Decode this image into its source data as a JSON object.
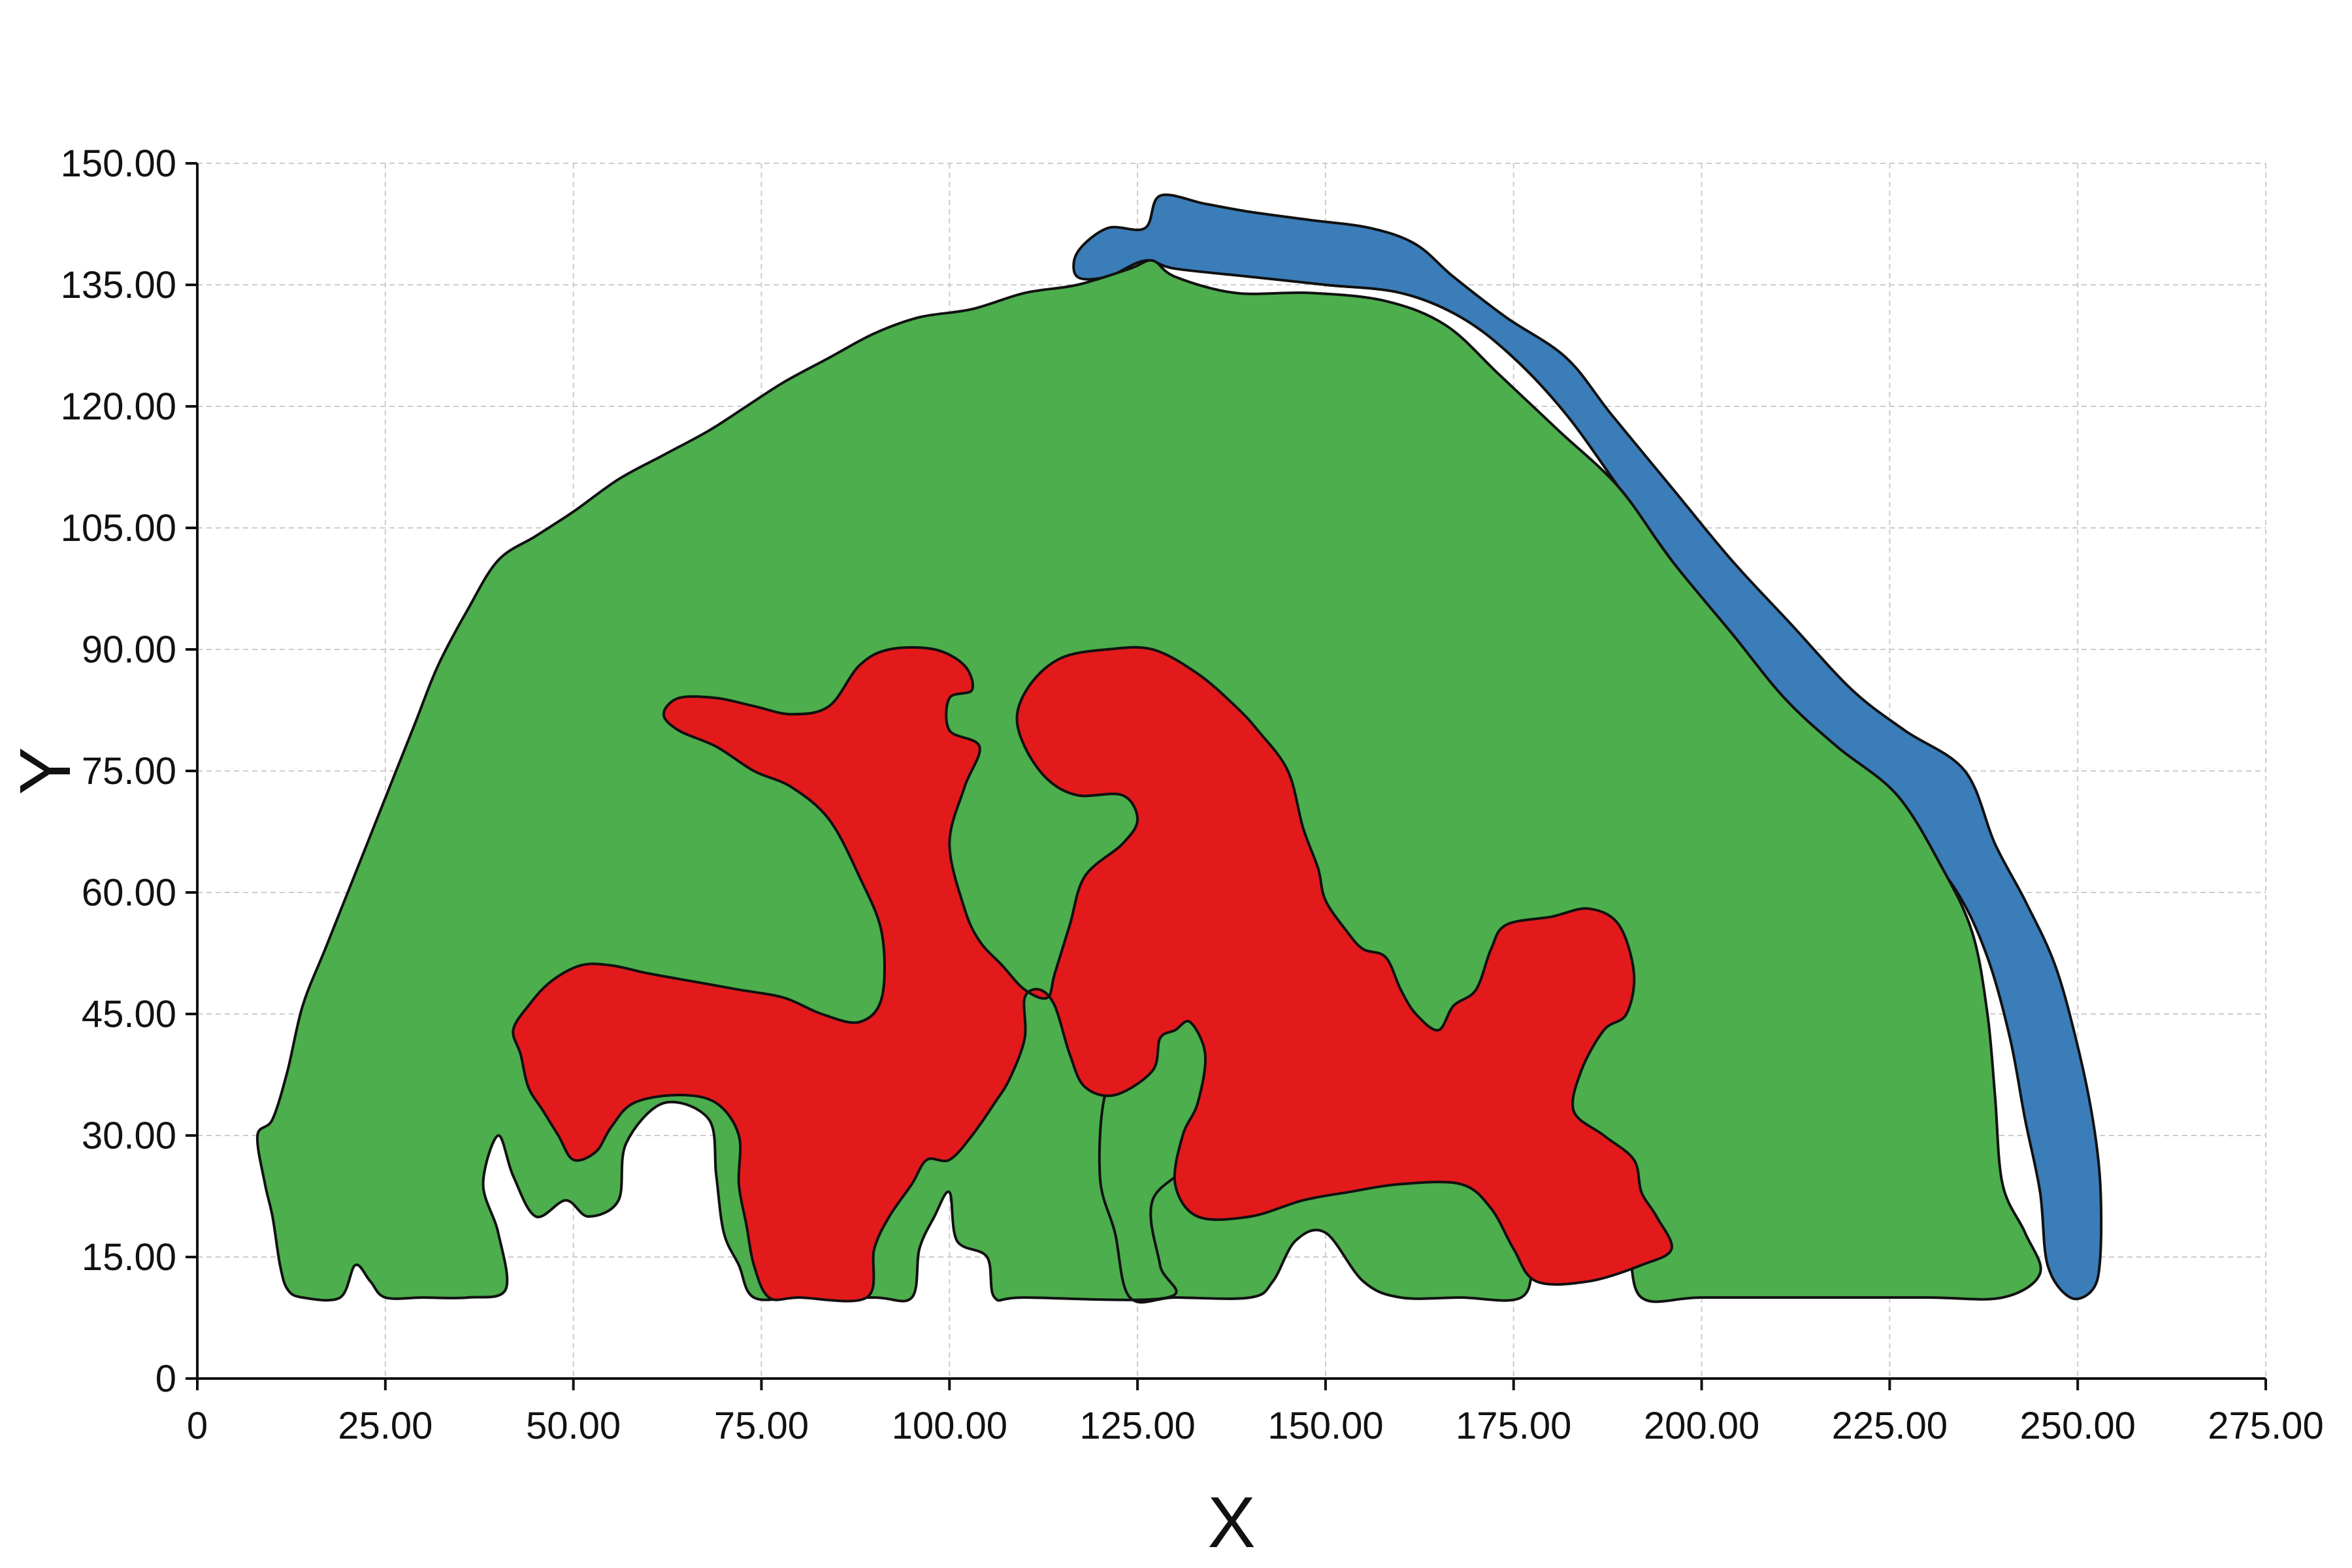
{
  "chart_data": {
    "type": "area",
    "title": "",
    "xlabel": "X",
    "ylabel": "Y",
    "xlim": [
      0,
      275
    ],
    "ylim": [
      0,
      150
    ],
    "grid": true,
    "x_ticks": [
      "0",
      "25.00",
      "50.00",
      "75.00",
      "100.00",
      "125.00",
      "150.00",
      "175.00",
      "200.00",
      "225.00",
      "250.00",
      "275.00"
    ],
    "x_tick_values": [
      0,
      25,
      50,
      75,
      100,
      125,
      150,
      175,
      200,
      225,
      250,
      275
    ],
    "y_ticks": [
      "0",
      "15.00",
      "30.00",
      "45.00",
      "60.00",
      "75.00",
      "90.00",
      "105.00",
      "120.00",
      "135.00",
      "150.00"
    ],
    "y_tick_values": [
      0,
      15,
      30,
      45,
      60,
      75,
      90,
      105,
      120,
      135,
      150
    ],
    "series": [
      {
        "color": "#3a7db9",
        "points": [
          [
            117,
            139
          ],
          [
            121,
            142
          ],
          [
            126,
            142
          ],
          [
            128,
            146
          ],
          [
            134,
            145
          ],
          [
            140,
            144
          ],
          [
            148,
            143
          ],
          [
            156,
            142
          ],
          [
            162,
            140
          ],
          [
            167,
            136
          ],
          [
            174,
            131
          ],
          [
            182,
            126
          ],
          [
            188,
            119
          ],
          [
            196,
            110
          ],
          [
            204,
            101
          ],
          [
            212,
            93
          ],
          [
            220,
            85
          ],
          [
            227,
            80
          ],
          [
            235,
            75
          ],
          [
            239,
            66
          ],
          [
            243,
            59
          ],
          [
            247,
            51
          ],
          [
            250,
            41
          ],
          [
            252,
            32
          ],
          [
            253,
            24
          ],
          [
            253,
            15
          ],
          [
            252,
            11
          ],
          [
            249,
            10
          ],
          [
            246,
            14
          ],
          [
            245,
            23
          ],
          [
            243,
            32
          ],
          [
            241,
            42
          ],
          [
            238,
            52
          ],
          [
            234,
            60
          ],
          [
            228,
            67
          ],
          [
            220,
            75
          ],
          [
            212,
            83
          ],
          [
            204,
            91
          ],
          [
            196,
            101
          ],
          [
            189,
            110
          ],
          [
            182,
            119
          ],
          [
            175,
            126
          ],
          [
            168,
            131
          ],
          [
            160,
            134
          ],
          [
            150,
            135
          ],
          [
            140,
            136
          ],
          [
            130,
            137
          ],
          [
            126,
            138
          ],
          [
            121,
            136
          ],
          [
            117,
            136
          ]
        ]
      },
      {
        "color": "#4cae4c",
        "points": [
          [
            8,
            30
          ],
          [
            10,
            32
          ],
          [
            12,
            38
          ],
          [
            14,
            46
          ],
          [
            17,
            53
          ],
          [
            20,
            60
          ],
          [
            23,
            67
          ],
          [
            26,
            74
          ],
          [
            29,
            81
          ],
          [
            32,
            88
          ],
          [
            36,
            95
          ],
          [
            40,
            101
          ],
          [
            45,
            104
          ],
          [
            50,
            107
          ],
          [
            56,
            111
          ],
          [
            62,
            114
          ],
          [
            68,
            117
          ],
          [
            73,
            120
          ],
          [
            78,
            123
          ],
          [
            84,
            126
          ],
          [
            90,
            129
          ],
          [
            96,
            131
          ],
          [
            103,
            132
          ],
          [
            110,
            134
          ],
          [
            117,
            135
          ],
          [
            124,
            137
          ],
          [
            127,
            138
          ],
          [
            130,
            136
          ],
          [
            138,
            134
          ],
          [
            148,
            134
          ],
          [
            158,
            133
          ],
          [
            166,
            130
          ],
          [
            173,
            124
          ],
          [
            181,
            117
          ],
          [
            189,
            110
          ],
          [
            196,
            101
          ],
          [
            204,
            92
          ],
          [
            211,
            84
          ],
          [
            218,
            78
          ],
          [
            226,
            72
          ],
          [
            232,
            63
          ],
          [
            236,
            55
          ],
          [
            238,
            45
          ],
          [
            239,
            35
          ],
          [
            240,
            24
          ],
          [
            243,
            18
          ],
          [
            245,
            13
          ],
          [
            240,
            10
          ],
          [
            230,
            10
          ],
          [
            215,
            10
          ],
          [
            200,
            10
          ],
          [
            192,
            10
          ],
          [
            190,
            17
          ],
          [
            186,
            20
          ],
          [
            182,
            22
          ],
          [
            178,
            15
          ],
          [
            176,
            10
          ],
          [
            168,
            10
          ],
          [
            160,
            10
          ],
          [
            155,
            12
          ],
          [
            150,
            18
          ],
          [
            146,
            17
          ],
          [
            143,
            12
          ],
          [
            140,
            10
          ],
          [
            130,
            10
          ],
          [
            124,
            10
          ],
          [
            122,
            18
          ],
          [
            120,
            25
          ],
          [
            121,
            36
          ],
          [
            126,
            40
          ],
          [
            131,
            45
          ],
          [
            135,
            40
          ],
          [
            133,
            28
          ],
          [
            127,
            22
          ],
          [
            128,
            14
          ],
          [
            129,
            10
          ],
          [
            110,
            10
          ],
          [
            106,
            10
          ],
          [
            105,
            15
          ],
          [
            101,
            17
          ],
          [
            100,
            23
          ],
          [
            98,
            20
          ],
          [
            96,
            16
          ],
          [
            95,
            10
          ],
          [
            90,
            10
          ],
          [
            80,
            10
          ],
          [
            74,
            10
          ],
          [
            72,
            14
          ],
          [
            70,
            18
          ],
          [
            69,
            25
          ],
          [
            68,
            32
          ],
          [
            62,
            34
          ],
          [
            57,
            29
          ],
          [
            56,
            22
          ],
          [
            52,
            20
          ],
          [
            49,
            22
          ],
          [
            45,
            20
          ],
          [
            42,
            25
          ],
          [
            40,
            30
          ],
          [
            38,
            24
          ],
          [
            40,
            18
          ],
          [
            41,
            11
          ],
          [
            36,
            10
          ],
          [
            30,
            10
          ],
          [
            25,
            10
          ],
          [
            23,
            12
          ],
          [
            21,
            14
          ],
          [
            19,
            10
          ],
          [
            14,
            10
          ],
          [
            12,
            11
          ],
          [
            11,
            14
          ],
          [
            10,
            20
          ],
          [
            9,
            24
          ]
        ]
      },
      {
        "color": "#e31a1c",
        "points": [
          [
            42,
            43
          ],
          [
            44,
            46
          ],
          [
            47,
            49
          ],
          [
            51,
            51
          ],
          [
            55,
            51
          ],
          [
            60,
            50
          ],
          [
            66,
            49
          ],
          [
            72,
            48
          ],
          [
            78,
            47
          ],
          [
            83,
            45
          ],
          [
            88,
            44
          ],
          [
            91,
            47
          ],
          [
            91,
            55
          ],
          [
            88,
            62
          ],
          [
            84,
            69
          ],
          [
            79,
            73
          ],
          [
            74,
            75
          ],
          [
            69,
            78
          ],
          [
            64,
            80
          ],
          [
            62,
            82
          ],
          [
            64,
            84
          ],
          [
            69,
            84
          ],
          [
            74,
            83
          ],
          [
            79,
            82
          ],
          [
            84,
            83
          ],
          [
            88,
            88
          ],
          [
            92,
            90
          ],
          [
            98,
            90
          ],
          [
            102,
            88
          ],
          [
            103,
            85
          ],
          [
            100,
            84
          ],
          [
            100,
            80
          ],
          [
            104,
            78
          ],
          [
            102,
            73
          ],
          [
            100,
            66
          ],
          [
            102,
            58
          ],
          [
            104,
            54
          ],
          [
            107,
            51
          ],
          [
            110,
            48
          ],
          [
            113,
            47
          ],
          [
            114,
            50
          ],
          [
            116,
            56
          ],
          [
            118,
            62
          ],
          [
            123,
            66
          ],
          [
            125,
            69
          ],
          [
            123,
            72
          ],
          [
            117,
            72
          ],
          [
            113,
            74
          ],
          [
            110,
            78
          ],
          [
            109,
            82
          ],
          [
            111,
            86
          ],
          [
            115,
            89
          ],
          [
            121,
            90
          ],
          [
            127,
            90
          ],
          [
            133,
            87
          ],
          [
            138,
            83
          ],
          [
            141,
            80
          ],
          [
            145,
            75
          ],
          [
            147,
            68
          ],
          [
            149,
            63
          ],
          [
            150,
            59
          ],
          [
            153,
            55
          ],
          [
            155,
            53
          ],
          [
            158,
            52
          ],
          [
            160,
            48
          ],
          [
            162,
            45
          ],
          [
            165,
            43
          ],
          [
            167,
            46
          ],
          [
            170,
            48
          ],
          [
            172,
            53
          ],
          [
            174,
            56
          ],
          [
            180,
            57
          ],
          [
            185,
            58
          ],
          [
            189,
            56
          ],
          [
            191,
            50
          ],
          [
            190,
            45
          ],
          [
            187,
            43
          ],
          [
            184,
            38
          ],
          [
            183,
            33
          ],
          [
            187,
            30
          ],
          [
            191,
            27
          ],
          [
            192,
            23
          ],
          [
            194,
            20
          ],
          [
            196,
            16
          ],
          [
            192,
            14
          ],
          [
            185,
            12
          ],
          [
            178,
            12
          ],
          [
            175,
            16
          ],
          [
            172,
            21
          ],
          [
            168,
            24
          ],
          [
            160,
            24
          ],
          [
            153,
            23
          ],
          [
            147,
            22
          ],
          [
            140,
            20
          ],
          [
            133,
            20
          ],
          [
            130,
            24
          ],
          [
            131,
            30
          ],
          [
            133,
            34
          ],
          [
            134,
            40
          ],
          [
            132,
            44
          ],
          [
            130,
            43
          ],
          [
            128,
            42
          ],
          [
            127,
            38
          ],
          [
            122,
            35
          ],
          [
            118,
            36
          ],
          [
            116,
            40
          ],
          [
            114,
            46
          ],
          [
            112,
            48
          ],
          [
            110,
            47
          ],
          [
            110,
            42
          ],
          [
            108,
            37
          ],
          [
            106,
            34
          ],
          [
            103,
            30
          ],
          [
            100,
            27
          ],
          [
            97,
            27
          ],
          [
            95,
            24
          ],
          [
            92,
            20
          ],
          [
            90,
            16
          ],
          [
            89,
            10
          ],
          [
            80,
            10
          ],
          [
            76,
            10
          ],
          [
            74,
            14
          ],
          [
            73,
            19
          ],
          [
            72,
            24
          ],
          [
            72,
            30
          ],
          [
            69,
            34
          ],
          [
            64,
            35
          ],
          [
            58,
            34
          ],
          [
            55,
            31
          ],
          [
            53,
            28
          ],
          [
            50,
            27
          ],
          [
            48,
            30
          ],
          [
            46,
            33
          ],
          [
            44,
            36
          ],
          [
            43,
            40
          ]
        ]
      }
    ]
  }
}
